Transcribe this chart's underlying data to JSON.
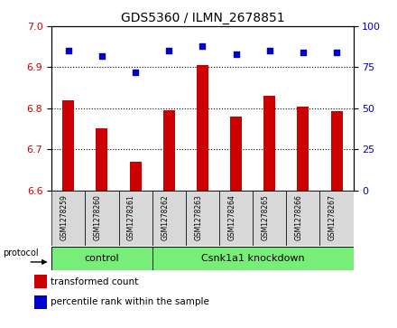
{
  "title": "GDS5360 / ILMN_2678851",
  "samples": [
    "GSM1278259",
    "GSM1278260",
    "GSM1278261",
    "GSM1278262",
    "GSM1278263",
    "GSM1278264",
    "GSM1278265",
    "GSM1278266",
    "GSM1278267"
  ],
  "transformed_counts": [
    6.82,
    6.75,
    6.67,
    6.795,
    6.905,
    6.779,
    6.83,
    6.805,
    6.793
  ],
  "percentile_ranks": [
    85,
    82,
    72,
    85,
    88,
    83,
    85,
    84,
    84
  ],
  "ylim_left": [
    6.6,
    7.0
  ],
  "ylim_right": [
    0,
    100
  ],
  "yticks_left": [
    6.6,
    6.7,
    6.8,
    6.9,
    7.0
  ],
  "yticks_right": [
    0,
    25,
    50,
    75,
    100
  ],
  "bar_color": "#cc0000",
  "dot_color": "#0000cc",
  "n_control": 3,
  "control_label": "control",
  "knockdown_label": "Csnk1a1 knockdown",
  "protocol_label": "protocol",
  "legend_bar_label": "transformed count",
  "legend_dot_label": "percentile rank within the sample",
  "group_color": "#77ee77",
  "sample_box_color": "#d8d8d8",
  "bar_width": 0.35
}
